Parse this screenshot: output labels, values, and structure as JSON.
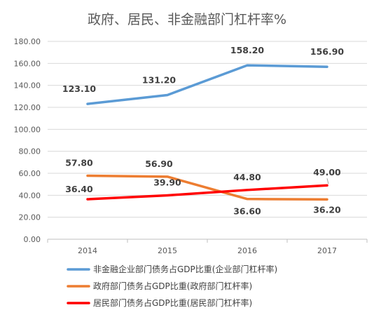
{
  "chart_data": {
    "type": "line",
    "title": "政府、居民、非金融部门杠杆率%",
    "xlabel": "",
    "ylabel": "",
    "categories": [
      "2014",
      "2015",
      "2016",
      "2017"
    ],
    "ylim": [
      0,
      180
    ],
    "yticks": [
      "0.00",
      "20.00",
      "40.00",
      "60.00",
      "80.00",
      "100.00",
      "120.00",
      "140.00",
      "160.00",
      "180.00"
    ],
    "grid": true,
    "legend_position": "bottom",
    "series": [
      {
        "name": "非金融企业部门债务占GDP比重(企业部门杠杆率)",
        "color": "#5B9BD5",
        "values": [
          123.1,
          131.2,
          158.2,
          156.9
        ],
        "labels": [
          "123.10",
          "131.20",
          "158.20",
          "156.90"
        ]
      },
      {
        "name": "政府部门债务占GDP比重(政府部门杠杆率)",
        "color": "#ED7D31",
        "values": [
          57.8,
          56.9,
          36.6,
          36.2
        ],
        "labels": [
          "57.80",
          "56.90",
          "36.60",
          "36.20"
        ]
      },
      {
        "name": "居民部门债务占GDP比重(居民部门杠杆率)",
        "color": "#FF0000",
        "values": [
          36.4,
          39.9,
          44.8,
          49.0
        ],
        "labels": [
          "36.40",
          "39.90",
          "44.80",
          "49.00"
        ]
      }
    ]
  }
}
